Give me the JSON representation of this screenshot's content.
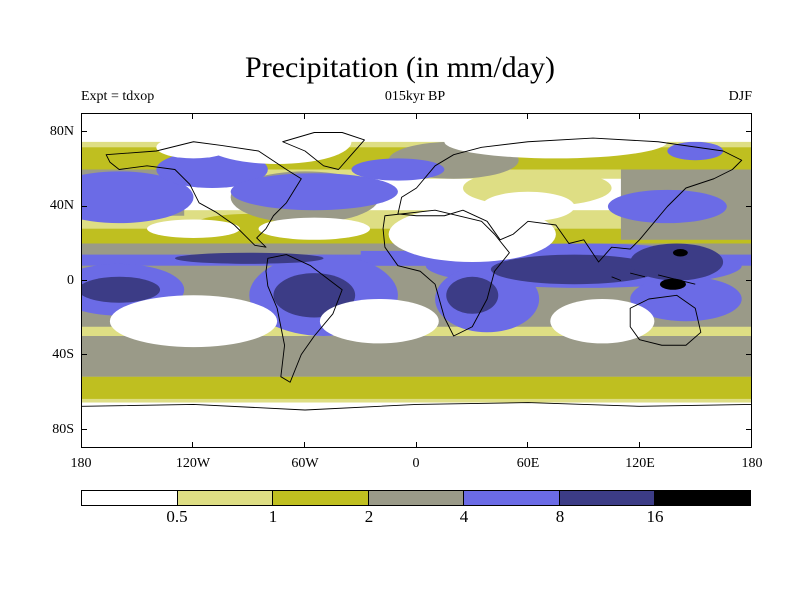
{
  "title": "Precipitation (in mm/day)",
  "subtitle_left": "Expt = tdxop",
  "subtitle_center": "015kyr BP",
  "subtitle_right": "DJF",
  "colors": {
    "lt_0_5": "#ffffff",
    "0_5_to_1": "#dede84",
    "1_to_2": "#bfbf20",
    "2_to_4": "#9a9a88",
    "4_to_8": "#6b6be6",
    "8_to_16": "#3c3c86",
    "gt_16": "#000000",
    "coastline": "#000000"
  },
  "chart_data": {
    "type": "filled-contour-map",
    "variable": "Precipitation",
    "units": "mm/day",
    "experiment": "tdxop",
    "period": "015kyr BP",
    "season": "DJF",
    "projection": "cylindrical equidistant",
    "lon_range": [
      -180,
      180
    ],
    "lat_range": [
      -90,
      90
    ],
    "x_ticks": [
      "180",
      "120W",
      "60W",
      "0",
      "60E",
      "120E",
      "180"
    ],
    "y_ticks": [
      "80N",
      "40N",
      "0",
      "40S",
      "80S"
    ],
    "contour_levels": [
      0.5,
      1,
      2,
      4,
      8,
      16
    ],
    "colorbar_labels": [
      "0.5",
      "1",
      "2",
      "4",
      "8",
      "16"
    ],
    "colorbar_colors": [
      "#ffffff",
      "#dede84",
      "#bfbf20",
      "#9a9a88",
      "#6b6be6",
      "#3c3c86",
      "#000000"
    ]
  }
}
